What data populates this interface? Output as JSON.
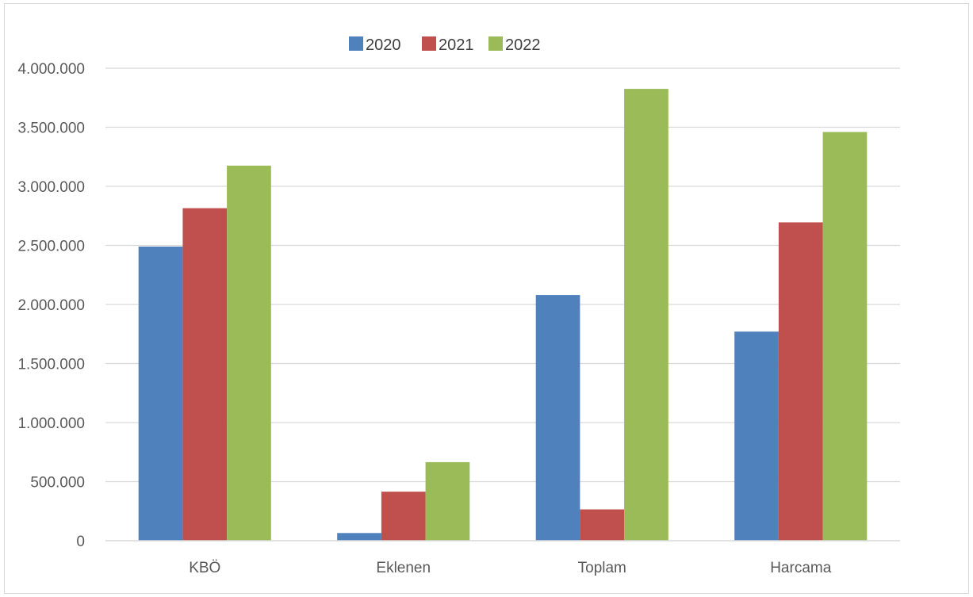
{
  "chart_data": {
    "type": "bar",
    "categories": [
      "KBÖ",
      "Eklenen",
      "Toplam",
      "Harcama"
    ],
    "series": [
      {
        "name": "2020",
        "color": "#4f81bd",
        "values": [
          2490000,
          65000,
          2080000,
          1770000
        ]
      },
      {
        "name": "2021",
        "color": "#c0504d",
        "values": [
          2815000,
          415000,
          265000,
          2695000
        ]
      },
      {
        "name": "2022",
        "color": "#9bbb59",
        "values": [
          3175000,
          665000,
          3825000,
          3460000
        ]
      }
    ],
    "ylim": [
      0,
      4000000
    ],
    "yticks": [
      0,
      500000,
      1000000,
      1500000,
      2000000,
      2500000,
      3000000,
      3500000,
      4000000
    ],
    "ytick_labels": [
      "0",
      "500.000",
      "1.000.000",
      "1.500.000",
      "2.000.000",
      "2.500.000",
      "3.000.000",
      "3.500.000",
      "4.000.000"
    ],
    "grid": true,
    "legend_position": "top-center"
  }
}
